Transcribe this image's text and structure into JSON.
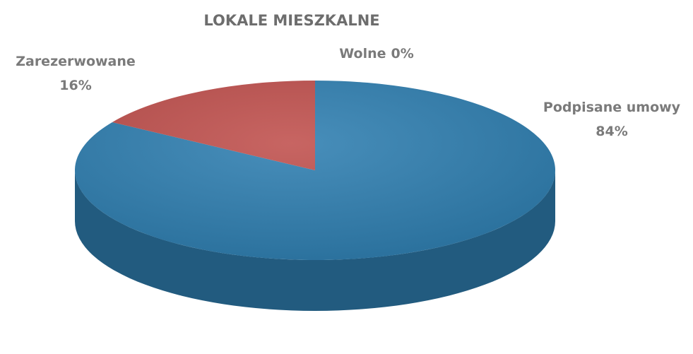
{
  "chart_data": {
    "type": "pie",
    "title": "LOKALE MIESZKALNE",
    "categories": [
      "Podpisane umowy",
      "Zarezerwowane",
      "Wolne"
    ],
    "values": [
      84,
      16,
      0
    ],
    "value_labels": [
      "84%",
      "16%",
      "0%"
    ],
    "colors": [
      "#2f7fb1",
      "#c0504d",
      "#9bbb59"
    ]
  }
}
